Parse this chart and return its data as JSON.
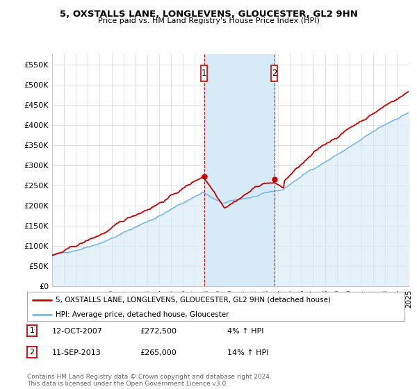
{
  "title1": "5, OXSTALLS LANE, LONGLEVENS, GLOUCESTER, GL2 9HN",
  "title2": "Price paid vs. HM Land Registry's House Price Index (HPI)",
  "yticks": [
    0,
    50000,
    100000,
    150000,
    200000,
    250000,
    300000,
    350000,
    400000,
    450000,
    500000,
    550000
  ],
  "ytick_labels": [
    "£0",
    "£50K",
    "£100K",
    "£150K",
    "£200K",
    "£250K",
    "£300K",
    "£350K",
    "£400K",
    "£450K",
    "£500K",
    "£550K"
  ],
  "xmin": 1995.0,
  "xmax": 2025.0,
  "ymin": 0,
  "ymax": 575000,
  "hpi_line_color": "#7ab8e8",
  "hpi_fill_color": "#d6eaf8",
  "price_color": "#cc0000",
  "highlight_color": "#d6eaf8",
  "marker1_x": 2007.78,
  "marker1_y": 272500,
  "marker2_x": 2013.7,
  "marker2_y": 265000,
  "legend_line1": "5, OXSTALLS LANE, LONGLEVENS, GLOUCESTER, GL2 9HN (detached house)",
  "legend_line2": "HPI: Average price, detached house, Gloucester",
  "annotation1_date": "12-OCT-2007",
  "annotation1_price": "£272,500",
  "annotation1_hpi": "4% ↑ HPI",
  "annotation2_date": "11-SEP-2013",
  "annotation2_price": "£265,000",
  "annotation2_hpi": "14% ↑ HPI",
  "footer": "Contains HM Land Registry data © Crown copyright and database right 2024.\nThis data is licensed under the Open Government Licence v3.0.",
  "bg_color": "#ffffff",
  "grid_color": "#e0e0e0"
}
